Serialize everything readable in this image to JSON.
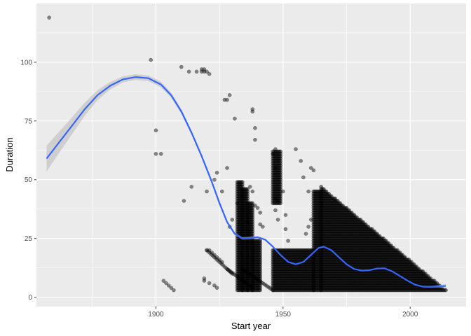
{
  "chart_data": {
    "type": "scatter",
    "title": "",
    "xlabel": "Start year",
    "ylabel": "Duration",
    "xlim": [
      1853,
      2022
    ],
    "ylim": [
      -4,
      125
    ],
    "x_ticks": [
      1900,
      1950,
      2000
    ],
    "x_tick_labels": [
      "1900",
      "1950",
      "2000"
    ],
    "y_ticks": [
      0,
      25,
      50,
      75,
      100
    ],
    "y_tick_labels": [
      "0",
      "25",
      "50",
      "75",
      "100"
    ],
    "grid": true,
    "legend": "none",
    "colors": {
      "panel_background": "#ebebeb",
      "grid": "#ffffff",
      "points": "#000000",
      "smooth_line": "#3366ff",
      "ribbon": "#bdbdbd"
    },
    "series": [
      {
        "kind": "points",
        "points": [
          {
            "x": 1858,
            "y": 119
          },
          {
            "x": 1898,
            "y": 101
          },
          {
            "x": 1900,
            "y": 71
          },
          {
            "x": 1900,
            "y": 61
          },
          {
            "x": 1902,
            "y": 61
          },
          {
            "x": 1903,
            "y": 7
          },
          {
            "x": 1904,
            "y": 6
          },
          {
            "x": 1905,
            "y": 5
          },
          {
            "x": 1906,
            "y": 4
          },
          {
            "x": 1907,
            "y": 3
          },
          {
            "x": 1910,
            "y": 98
          },
          {
            "x": 1911,
            "y": 41
          },
          {
            "x": 1913,
            "y": 96
          },
          {
            "x": 1914,
            "y": 47
          },
          {
            "x": 1916,
            "y": 96
          },
          {
            "x": 1918,
            "y": 97
          },
          {
            "x": 1918,
            "y": 96
          },
          {
            "x": 1919,
            "y": 97
          },
          {
            "x": 1919,
            "y": 96
          },
          {
            "x": 1920,
            "y": 96
          },
          {
            "x": 1920,
            "y": 45
          },
          {
            "x": 1920,
            "y": 20
          },
          {
            "x": 1921,
            "y": 95
          },
          {
            "x": 1921,
            "y": 20
          },
          {
            "x": 1922,
            "y": 19
          },
          {
            "x": 1919,
            "y": 8
          },
          {
            "x": 1919,
            "y": 7
          },
          {
            "x": 1921,
            "y": 6
          },
          {
            "x": 1923,
            "y": 5
          },
          {
            "x": 1924,
            "y": 4
          },
          {
            "x": 1924,
            "y": 53
          },
          {
            "x": 1923,
            "y": 50
          },
          {
            "x": 1923,
            "y": 18
          },
          {
            "x": 1924,
            "y": 17
          },
          {
            "x": 1925,
            "y": 16
          },
          {
            "x": 1926,
            "y": 15
          },
          {
            "x": 1926,
            "y": 45
          },
          {
            "x": 1927,
            "y": 84
          },
          {
            "x": 1928,
            "y": 84
          },
          {
            "x": 1928,
            "y": 55
          },
          {
            "x": 1929,
            "y": 86
          },
          {
            "x": 1929,
            "y": 30
          },
          {
            "x": 1930,
            "y": 33
          },
          {
            "x": 1931,
            "y": 76
          },
          {
            "x": 1932,
            "y": 40
          },
          {
            "x": 1938,
            "y": 80
          },
          {
            "x": 1938,
            "y": 79
          },
          {
            "x": 1939,
            "y": 72
          },
          {
            "x": 1939,
            "y": 67
          },
          {
            "x": 1937,
            "y": 47
          },
          {
            "x": 1938,
            "y": 45
          },
          {
            "x": 1939,
            "y": 39
          },
          {
            "x": 1940,
            "y": 38
          },
          {
            "x": 1941,
            "y": 36
          },
          {
            "x": 1941,
            "y": 31
          },
          {
            "x": 1942,
            "y": 30
          },
          {
            "x": 1936,
            "y": 32
          },
          {
            "x": 1947,
            "y": 63
          },
          {
            "x": 1946,
            "y": 61
          },
          {
            "x": 1947,
            "y": 55
          },
          {
            "x": 1947,
            "y": 42
          },
          {
            "x": 1948,
            "y": 41
          },
          {
            "x": 1947,
            "y": 37
          },
          {
            "x": 1948,
            "y": 33
          },
          {
            "x": 1950,
            "y": 45
          },
          {
            "x": 1951,
            "y": 35
          },
          {
            "x": 1951,
            "y": 29
          },
          {
            "x": 1952,
            "y": 24
          },
          {
            "x": 1955,
            "y": 63
          },
          {
            "x": 1957,
            "y": 58
          },
          {
            "x": 1958,
            "y": 51
          },
          {
            "x": 1959,
            "y": 27
          },
          {
            "x": 1960,
            "y": 30
          },
          {
            "x": 1961,
            "y": 33
          },
          {
            "x": 1961,
            "y": 55
          },
          {
            "x": 1960,
            "y": 45
          },
          {
            "x": 1962,
            "y": 54
          }
        ]
      },
      {
        "kind": "dense-clusters",
        "note_for_density": "vertical columns of overlapping points",
        "columns": [
          {
            "x": [
              1932,
              1934
            ],
            "y": [
              3,
              49
            ]
          },
          {
            "x": [
              1934,
              1936
            ],
            "y": [
              3,
              46
            ]
          },
          {
            "x": [
              1936,
              1938
            ],
            "y": [
              3,
              40
            ]
          },
          {
            "x": [
              1938,
              1941
            ],
            "y": [
              3,
              24
            ]
          },
          {
            "x": [
              1946,
              1949
            ],
            "y": [
              40,
              62
            ]
          },
          {
            "x": [
              1946,
              1962
            ],
            "y": [
              3,
              20
            ]
          },
          {
            "x": [
              1962,
              1965
            ],
            "y": [
              3,
              45
            ]
          }
        ],
        "triangles": [
          {
            "x": [
              1965,
              2014
            ],
            "y_top_start": 47,
            "y_top_end": 3,
            "y_bottom": 3
          }
        ],
        "diagonals": [
          {
            "x": [
              1920,
              1930
            ],
            "y": [
              20,
              10
            ]
          },
          {
            "x": [
              1928,
              1938
            ],
            "y": [
              12,
              4
            ]
          },
          {
            "x": [
              1934,
              1946
            ],
            "y": [
              12,
              3
            ]
          }
        ]
      },
      {
        "kind": "smooth",
        "name": "",
        "points": [
          {
            "x": 1857,
            "y": 59
          },
          {
            "x": 1862,
            "y": 66
          },
          {
            "x": 1867,
            "y": 73
          },
          {
            "x": 1872,
            "y": 80
          },
          {
            "x": 1877,
            "y": 86
          },
          {
            "x": 1882,
            "y": 90
          },
          {
            "x": 1887,
            "y": 92.7
          },
          {
            "x": 1892,
            "y": 93.7
          },
          {
            "x": 1897,
            "y": 93.2
          },
          {
            "x": 1902,
            "y": 90.5
          },
          {
            "x": 1906,
            "y": 86
          },
          {
            "x": 1910,
            "y": 79
          },
          {
            "x": 1914,
            "y": 70
          },
          {
            "x": 1918,
            "y": 60
          },
          {
            "x": 1922,
            "y": 49
          },
          {
            "x": 1925,
            "y": 40
          },
          {
            "x": 1928,
            "y": 32
          },
          {
            "x": 1931,
            "y": 27
          },
          {
            "x": 1934,
            "y": 25
          },
          {
            "x": 1937,
            "y": 25.2
          },
          {
            "x": 1940,
            "y": 25.5
          },
          {
            "x": 1943,
            "y": 24.5
          },
          {
            "x": 1946,
            "y": 21.5
          },
          {
            "x": 1949,
            "y": 18
          },
          {
            "x": 1952,
            "y": 15
          },
          {
            "x": 1955,
            "y": 14
          },
          {
            "x": 1958,
            "y": 15
          },
          {
            "x": 1961,
            "y": 18
          },
          {
            "x": 1964,
            "y": 21
          },
          {
            "x": 1966,
            "y": 21.5
          },
          {
            "x": 1969,
            "y": 20
          },
          {
            "x": 1972,
            "y": 17
          },
          {
            "x": 1975,
            "y": 14
          },
          {
            "x": 1978,
            "y": 12
          },
          {
            "x": 1981,
            "y": 11.3
          },
          {
            "x": 1984,
            "y": 11.5
          },
          {
            "x": 1987,
            "y": 12.2
          },
          {
            "x": 1990,
            "y": 12.3
          },
          {
            "x": 1993,
            "y": 11
          },
          {
            "x": 1996,
            "y": 9
          },
          {
            "x": 1999,
            "y": 7
          },
          {
            "x": 2002,
            "y": 5.3
          },
          {
            "x": 2005,
            "y": 4.5
          },
          {
            "x": 2008,
            "y": 4.4
          },
          {
            "x": 2011,
            "y": 4.6
          },
          {
            "x": 2014,
            "y": 4.8
          }
        ],
        "ribbon_halfwidth": [
          5.5,
          4.5,
          3.6,
          2.8,
          2.1,
          1.6,
          1.3,
          1.2,
          1.2,
          1.2,
          1.1,
          1.0,
          0.9,
          0.9,
          0.8,
          0.7,
          0.6,
          0.5,
          0.5,
          0.5,
          0.5,
          0.4,
          0.3,
          0.3,
          0.3,
          0.2,
          0.2,
          0.2,
          0.2,
          0.2,
          0.2,
          0.2,
          0.2,
          0.2,
          0.2,
          0.2,
          0.2,
          0.2,
          0.2,
          0.2,
          0.2,
          0.2,
          0.2,
          0.3,
          0.5,
          0.8
        ]
      }
    ]
  }
}
